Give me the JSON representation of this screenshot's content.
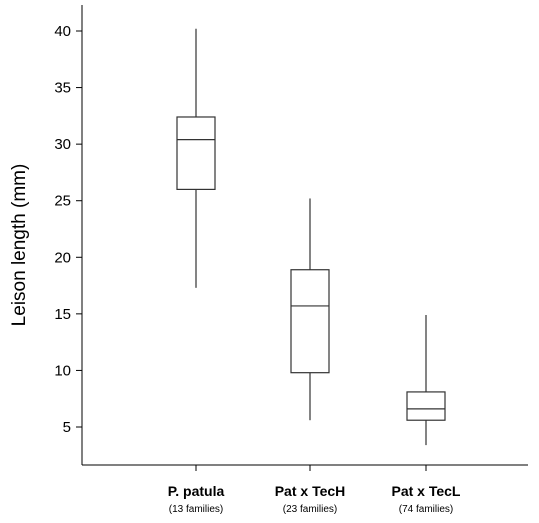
{
  "chart_data": {
    "type": "boxplot",
    "title": "",
    "xlabel": "",
    "ylabel": "Leison length (mm)",
    "ylim": [
      2,
      42
    ],
    "yticks": [
      5,
      10,
      15,
      20,
      25,
      30,
      35,
      40
    ],
    "grid": false,
    "legend": "none",
    "categories": [
      {
        "label": "P. patula",
        "sublabel": "(13 families)",
        "whisker_low": 17.3,
        "q1": 26.0,
        "median": 30.4,
        "q3": 32.4,
        "whisker_high": 40.2
      },
      {
        "label": "Pat x TecH",
        "sublabel": "(23 families)",
        "whisker_low": 5.6,
        "q1": 9.8,
        "median": 15.7,
        "q3": 18.9,
        "whisker_high": 25.2
      },
      {
        "label": "Pat x TecL",
        "sublabel": "(74 families)",
        "whisker_low": 3.4,
        "q1": 5.6,
        "median": 6.6,
        "q3": 8.1,
        "whisker_high": 14.9
      }
    ],
    "colors": {
      "box_stroke": "#333333",
      "box_fill": "#ffffff",
      "axis": "#000000"
    }
  }
}
